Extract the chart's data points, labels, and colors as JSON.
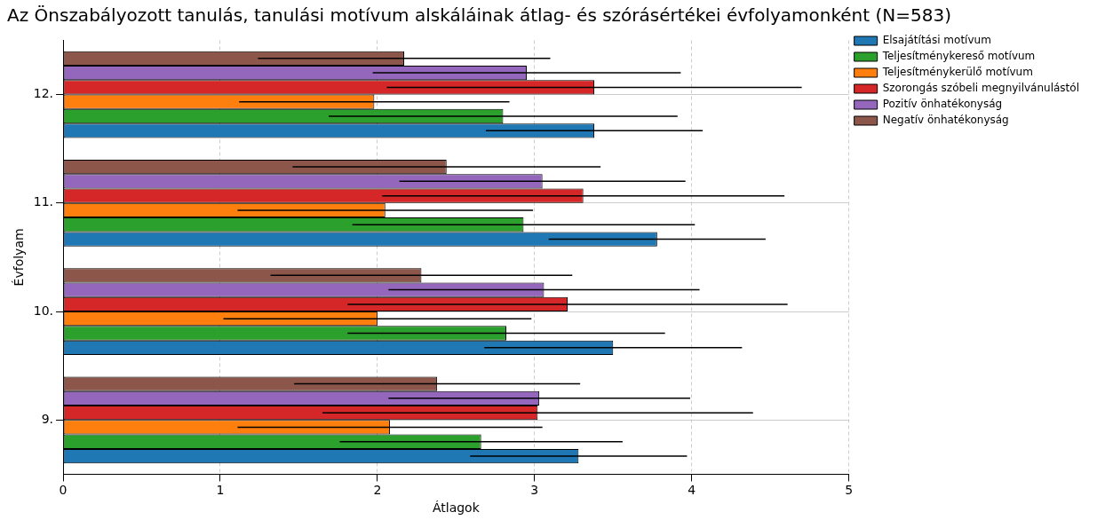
{
  "chart_data": {
    "type": "bar",
    "orientation": "horizontal",
    "title": "Az Önszabályozott tanulás, tanulási motívum alskáláinak átlag- és szórásértékei évfolyamonként (N=583)",
    "xlabel": "Átlagok",
    "ylabel": "Évfolyam",
    "categories": [
      "12.",
      "11.",
      "10.",
      "9."
    ],
    "series": [
      {
        "name": "Elsajátítási motívum",
        "color": "#1f77b4",
        "values": [
          3.38,
          3.78,
          3.5,
          3.28
        ],
        "errors": [
          0.69,
          0.69,
          0.82,
          0.69
        ]
      },
      {
        "name": "Teljesítménykereső motívum",
        "color": "#2ca02c",
        "values": [
          2.8,
          2.93,
          2.82,
          2.66
        ],
        "errors": [
          1.11,
          1.09,
          1.01,
          0.9
        ]
      },
      {
        "name": "Teljesítménykerülő motívum",
        "color": "#ff7f0e",
        "values": [
          1.98,
          2.05,
          2.0,
          2.08
        ],
        "errors": [
          0.86,
          0.94,
          0.98,
          0.97
        ]
      },
      {
        "name": "Szorongás szóbeli megnyilvánulástól",
        "color": "#d62728",
        "values": [
          3.38,
          3.31,
          3.21,
          3.02
        ],
        "errors": [
          1.32,
          1.28,
          1.4,
          1.37
        ]
      },
      {
        "name": "Pozitív önhatékonyság",
        "color": "#9467bd",
        "values": [
          2.95,
          3.05,
          3.06,
          3.03
        ],
        "errors": [
          0.98,
          0.91,
          0.99,
          0.96
        ]
      },
      {
        "name": "Negatív önhatékonyság",
        "color": "#8c564b",
        "values": [
          2.17,
          2.44,
          2.28,
          2.38
        ],
        "errors": [
          0.93,
          0.98,
          0.96,
          0.91
        ]
      }
    ],
    "xlim": [
      0,
      5
    ],
    "xticks": [
      0,
      1,
      2,
      3,
      4,
      5
    ],
    "grid": true,
    "legend": "top right"
  }
}
